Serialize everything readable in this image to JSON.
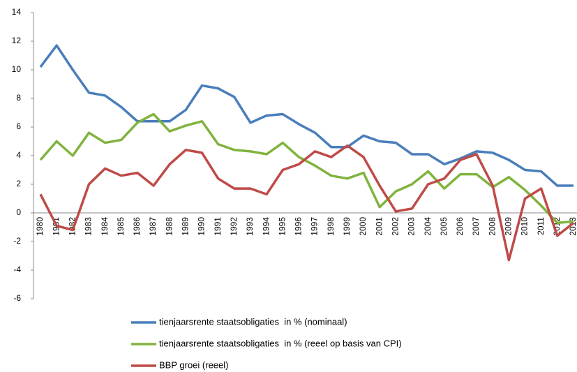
{
  "chart_data": {
    "type": "line",
    "categories": [
      "1980",
      "1981",
      "1982",
      "1983",
      "1984",
      "1985",
      "1986",
      "1987",
      "1988",
      "1989",
      "1990",
      "1991",
      "1992",
      "1993",
      "1994",
      "1995",
      "1996",
      "1997",
      "1998",
      "1999",
      "2000",
      "2001",
      "2002",
      "2003",
      "2004",
      "2005",
      "2006",
      "2007",
      "2008",
      "2009",
      "2010",
      "2011",
      "2012",
      "2013"
    ],
    "series": [
      {
        "name": "tienjaarsrente staatsobligaties  in % (nominaal)",
        "color": "#4a7ebb",
        "values": [
          10.2,
          11.7,
          10.0,
          8.4,
          8.2,
          7.4,
          6.4,
          6.4,
          6.4,
          7.2,
          8.9,
          8.7,
          8.1,
          6.3,
          6.8,
          6.9,
          6.2,
          5.6,
          4.6,
          4.6,
          5.4,
          5.0,
          4.9,
          4.1,
          4.1,
          3.4,
          3.8,
          4.3,
          4.2,
          3.7,
          3.0,
          2.9,
          1.9,
          1.9
        ]
      },
      {
        "name": "tienjaarsrente staatsobligaties  in % (reeel op basis van CPI)",
        "color": "#80b33e",
        "values": [
          3.7,
          5.0,
          4.0,
          5.6,
          4.9,
          5.1,
          6.3,
          6.9,
          5.7,
          6.1,
          6.4,
          4.8,
          4.4,
          4.3,
          4.1,
          4.9,
          3.9,
          3.3,
          2.6,
          2.4,
          2.8,
          0.4,
          1.5,
          2.0,
          2.9,
          1.7,
          2.7,
          2.7,
          1.8,
          2.5,
          1.6,
          0.5,
          -0.7,
          -0.6
        ]
      },
      {
        "name": "BBP groei (reeel)",
        "color": "#be4b48",
        "values": [
          1.3,
          -0.9,
          -1.2,
          2.0,
          3.1,
          2.6,
          2.8,
          1.9,
          3.4,
          4.4,
          4.2,
          2.4,
          1.7,
          1.7,
          1.3,
          3.0,
          3.4,
          4.3,
          3.9,
          4.7,
          3.9,
          1.9,
          0.1,
          0.3,
          2.0,
          2.4,
          3.7,
          4.1,
          1.9,
          -3.3,
          1.0,
          1.7,
          -1.6,
          -0.7
        ]
      }
    ],
    "ylim": [
      -6,
      14
    ],
    "yticks": [
      -6,
      -4,
      -2,
      0,
      2,
      4,
      6,
      8,
      10,
      12,
      14
    ],
    "grid": false
  }
}
